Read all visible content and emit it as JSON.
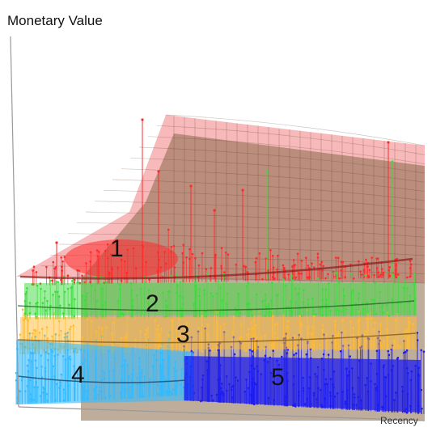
{
  "chart_data": {
    "type": "scatter",
    "subtype": "3d-scatter-with-fitted-surfaces",
    "z_label": "Monetary Value",
    "x_label": "Recency",
    "grid": true,
    "legend": "none",
    "clusters": [
      {
        "label": "1",
        "color": "#ff2b2b"
      },
      {
        "label": "2",
        "color": "#3ddc3d"
      },
      {
        "label": "3",
        "color": "#ffbb33"
      },
      {
        "label": "4",
        "color": "#33bbff"
      },
      {
        "label": "5",
        "color": "#1c1cf0"
      }
    ],
    "surfaces": [
      {
        "color": "#f08080"
      },
      {
        "color": "#8b6a4a"
      }
    ]
  }
}
